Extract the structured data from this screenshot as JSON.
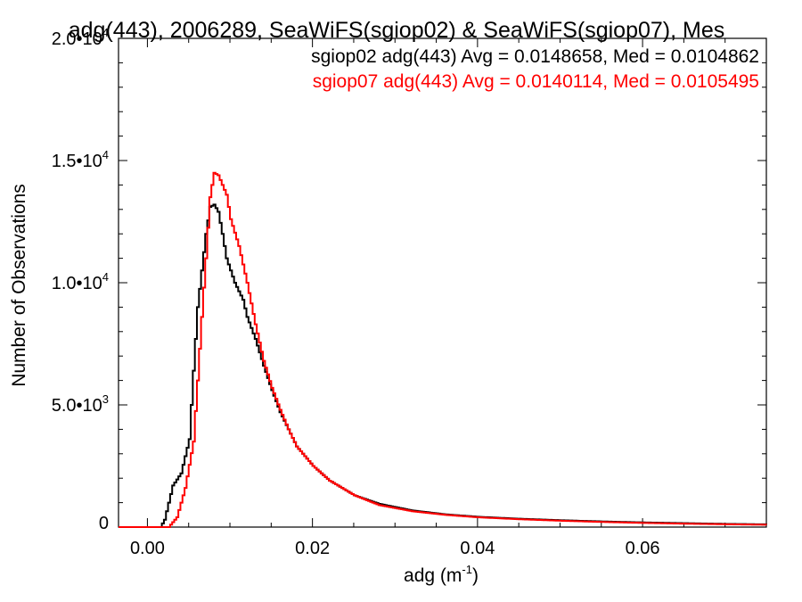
{
  "chart_data": {
    "type": "line",
    "title": "adg(443), 2006289, SeaWiFS(sgiop02) & SeaWiFS(sgiop07), Mes",
    "xlabel": "adg (m",
    "xlabel_exp": "-1",
    "xlabel_close": ")",
    "ylabel": "Number of Observations",
    "xlim": [
      -0.0035,
      0.075
    ],
    "ylim": [
      0,
      20000
    ],
    "x_ticks": [
      {
        "value": 0.0,
        "label": "0.00"
      },
      {
        "value": 0.02,
        "label": "0.02"
      },
      {
        "value": 0.04,
        "label": "0.04"
      },
      {
        "value": 0.06,
        "label": "0.06"
      }
    ],
    "y_ticks": [
      {
        "value": 0,
        "mant": "0",
        "exp": ""
      },
      {
        "value": 5000,
        "mant": "5.0•10",
        "exp": "3"
      },
      {
        "value": 10000,
        "mant": "1.0•10",
        "exp": "4"
      },
      {
        "value": 15000,
        "mant": "1.5•10",
        "exp": "4"
      },
      {
        "value": 20000,
        "mant": "2.0•10",
        "exp": "4"
      }
    ],
    "grid": false,
    "legend_position": "top-right",
    "series": [
      {
        "name": "sgiop02 adg(443) Avg = 0.0148658, Med = 0.0104862",
        "color": "#000000",
        "points": [
          [
            -0.0035,
            0
          ],
          [
            0.0015,
            0
          ],
          [
            0.002,
            300
          ],
          [
            0.0025,
            1000
          ],
          [
            0.003,
            1700
          ],
          [
            0.004,
            2200
          ],
          [
            0.005,
            3600
          ],
          [
            0.0055,
            6400
          ],
          [
            0.006,
            9000
          ],
          [
            0.0065,
            10500
          ],
          [
            0.007,
            12000
          ],
          [
            0.0075,
            13100
          ],
          [
            0.008,
            13200
          ],
          [
            0.0085,
            12900
          ],
          [
            0.009,
            12000
          ],
          [
            0.0095,
            11000
          ],
          [
            0.0105,
            10000
          ],
          [
            0.0115,
            9300
          ],
          [
            0.012,
            8600
          ],
          [
            0.013,
            7700
          ],
          [
            0.014,
            6600
          ],
          [
            0.015,
            5600
          ],
          [
            0.016,
            4700
          ],
          [
            0.017,
            4000
          ],
          [
            0.018,
            3300
          ],
          [
            0.02,
            2500
          ],
          [
            0.022,
            1900
          ],
          [
            0.025,
            1300
          ],
          [
            0.028,
            950
          ],
          [
            0.032,
            680
          ],
          [
            0.036,
            520
          ],
          [
            0.04,
            420
          ],
          [
            0.045,
            340
          ],
          [
            0.05,
            280
          ],
          [
            0.055,
            230
          ],
          [
            0.06,
            190
          ],
          [
            0.065,
            160
          ],
          [
            0.07,
            130
          ],
          [
            0.075,
            110
          ]
        ]
      },
      {
        "name": "sgiop07 adg(443) Avg = 0.0140114, Med = 0.0105495",
        "color": "#ff0000",
        "points": [
          [
            -0.0035,
            0
          ],
          [
            0.0025,
            0
          ],
          [
            0.0035,
            400
          ],
          [
            0.0045,
            1600
          ],
          [
            0.0055,
            3500
          ],
          [
            0.006,
            6000
          ],
          [
            0.0065,
            8600
          ],
          [
            0.007,
            11000
          ],
          [
            0.0075,
            13500
          ],
          [
            0.008,
            14500
          ],
          [
            0.0085,
            14400
          ],
          [
            0.009,
            14000
          ],
          [
            0.0095,
            13600
          ],
          [
            0.01,
            12600
          ],
          [
            0.011,
            11500
          ],
          [
            0.012,
            10000
          ],
          [
            0.013,
            8300
          ],
          [
            0.014,
            6800
          ],
          [
            0.015,
            5700
          ],
          [
            0.016,
            4800
          ],
          [
            0.017,
            4000
          ],
          [
            0.018,
            3300
          ],
          [
            0.02,
            2500
          ],
          [
            0.022,
            1900
          ],
          [
            0.025,
            1300
          ],
          [
            0.028,
            900
          ],
          [
            0.032,
            650
          ],
          [
            0.036,
            500
          ],
          [
            0.04,
            400
          ],
          [
            0.045,
            320
          ],
          [
            0.05,
            260
          ],
          [
            0.055,
            210
          ],
          [
            0.06,
            170
          ],
          [
            0.065,
            140
          ],
          [
            0.07,
            115
          ],
          [
            0.075,
            95
          ]
        ]
      }
    ]
  }
}
